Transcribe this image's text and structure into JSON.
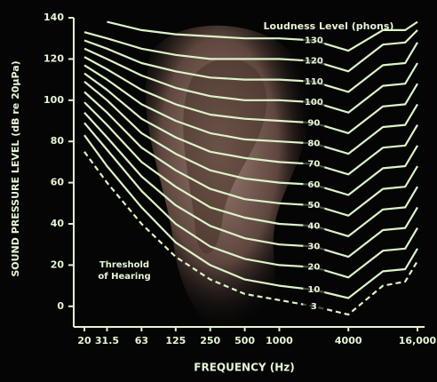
{
  "chart_data": {
    "type": "line",
    "x_label": "FREQUENCY (Hz)",
    "y_label": "SOUND PRESSURE LEVEL (dB re 20μPa)",
    "legend_title": "Loudness Level (phons)",
    "annotation": [
      "Threshold",
      "of Hearing"
    ],
    "log_x": true,
    "color": "#dcf3c8",
    "xlim": [
      20,
      16000
    ],
    "ylim": [
      -10,
      140
    ],
    "xticks": [
      20,
      31.5,
      63,
      125,
      250,
      500,
      1000,
      4000,
      {
        "value": 16000,
        "label": "16,000"
      }
    ],
    "yticks": [
      0,
      20,
      40,
      60,
      80,
      100,
      120,
      140
    ],
    "x": [
      20,
      31.5,
      63,
      125,
      250,
      500,
      1000,
      2000,
      4000,
      8000,
      12500,
      16000
    ],
    "series": [
      {
        "name": "130",
        "values": [
          null,
          138,
          134,
          132,
          131,
          130,
          130,
          129,
          124,
          134,
          134,
          138
        ]
      },
      {
        "name": "120",
        "values": [
          133,
          130,
          125,
          122,
          120,
          120,
          120,
          119,
          114,
          127,
          128,
          134
        ]
      },
      {
        "name": "110",
        "values": [
          129,
          125,
          118,
          114,
          111,
          110,
          110,
          109,
          104,
          117,
          118,
          128
        ]
      },
      {
        "name": "100",
        "values": [
          125,
          120,
          112,
          106,
          102,
          100,
          100,
          99,
          94,
          107,
          108,
          118
        ]
      },
      {
        "name": "90",
        "values": [
          121,
          115,
          105,
          98,
          93,
          91,
          90,
          89,
          84,
          97,
          98,
          108
        ]
      },
      {
        "name": "80",
        "values": [
          117,
          110,
          98,
          90,
          84,
          81,
          80,
          79,
          74,
          87,
          88,
          98
        ]
      },
      {
        "name": "70",
        "values": [
          113,
          105,
          91,
          82,
          75,
          72,
          70,
          69,
          64,
          77,
          78,
          88
        ]
      },
      {
        "name": "60",
        "values": [
          109,
          100,
          84,
          74,
          66,
          62,
          60,
          59,
          54,
          67,
          68,
          78
        ]
      },
      {
        "name": "50",
        "values": [
          104,
          94,
          77,
          66,
          57,
          52,
          50,
          49,
          44,
          57,
          58,
          68
        ]
      },
      {
        "name": "40",
        "values": [
          99,
          88,
          70,
          58,
          48,
          43,
          40,
          39,
          34,
          47,
          48,
          58
        ]
      },
      {
        "name": "30",
        "values": [
          94,
          82,
          63,
          49,
          39,
          33,
          30,
          29,
          24,
          37,
          38,
          48
        ]
      },
      {
        "name": "20",
        "values": [
          89,
          76,
          56,
          40,
          29,
          23,
          20,
          19,
          14,
          27,
          28,
          38
        ]
      },
      {
        "name": "10",
        "values": [
          83,
          68,
          48,
          31,
          20,
          13,
          10,
          8,
          4,
          17,
          18,
          28
        ]
      },
      {
        "name": "3",
        "dashed": true,
        "values": [
          75,
          60,
          40,
          24,
          13,
          6,
          3,
          0,
          -4,
          10,
          12,
          22
        ]
      }
    ]
  }
}
